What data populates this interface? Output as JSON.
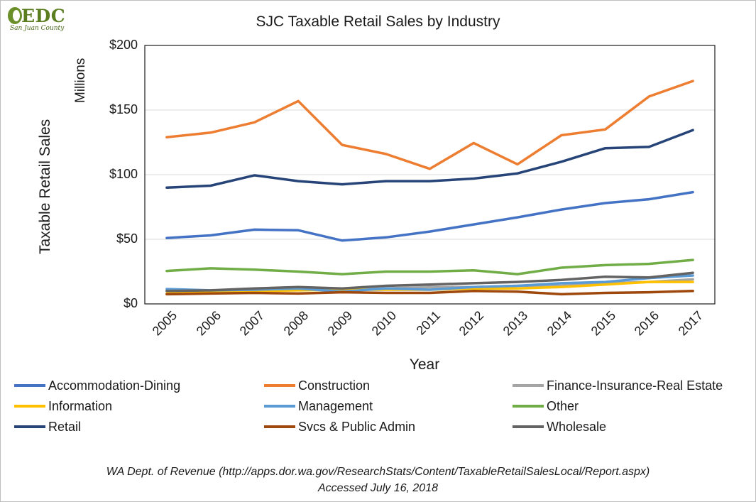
{
  "logo": {
    "text": "EDC",
    "subtitle": "San Juan County"
  },
  "chart_data": {
    "type": "line",
    "title": "SJC Taxable Retail Sales by Industry",
    "units_label": "Millions",
    "ylabel": "Taxable Retail Sales",
    "xlabel": "Year",
    "x": [
      "2005",
      "2006",
      "2007",
      "2008",
      "2009",
      "2010",
      "2011",
      "2012",
      "2013",
      "2014",
      "2015",
      "2016",
      "2017"
    ],
    "ylim": [
      0,
      200
    ],
    "y_ticks": [
      {
        "value": 0,
        "label": "$0"
      },
      {
        "value": 50,
        "label": "$50"
      },
      {
        "value": 100,
        "label": "$100"
      },
      {
        "value": 150,
        "label": "$150"
      },
      {
        "value": 200,
        "label": "$200"
      }
    ],
    "grid": true,
    "legend_position": "bottom",
    "series": [
      {
        "name": "Accommodation-Dining",
        "color": "#4472c4",
        "values": [
          51,
          53,
          57.5,
          57,
          49,
          51.5,
          56,
          61.5,
          67,
          73,
          78,
          81,
          86.5
        ]
      },
      {
        "name": "Construction",
        "color": "#ed7d31",
        "values": [
          129,
          132.5,
          140.5,
          157,
          123,
          116,
          104.5,
          124.5,
          108,
          130.5,
          135,
          160.5,
          172.5
        ]
      },
      {
        "name": "Finance-Insurance-Real Estate",
        "color": "#a5a5a5",
        "values": [
          10,
          10,
          11,
          12,
          11,
          12,
          13,
          13,
          14,
          14,
          16,
          17,
          19
        ]
      },
      {
        "name": "Information",
        "color": "#ffc000",
        "values": [
          8,
          9,
          10,
          10.5,
          11,
          11,
          11,
          12,
          12,
          13,
          15,
          17,
          17
        ]
      },
      {
        "name": "Management",
        "color": "#5b9bd5",
        "values": [
          11.5,
          10.5,
          11,
          12,
          9.5,
          12,
          11,
          13,
          14,
          16,
          17,
          20,
          22
        ]
      },
      {
        "name": "Other",
        "color": "#70ad47",
        "values": [
          25.5,
          27.5,
          26.5,
          25,
          23,
          25,
          25,
          26,
          23,
          28,
          30,
          31,
          34
        ]
      },
      {
        "name": "Retail",
        "color": "#264478",
        "values": [
          90,
          91.5,
          99.5,
          95,
          92.5,
          95,
          95,
          97,
          101,
          110,
          120.5,
          121.5,
          134.5
        ]
      },
      {
        "name": "Svcs & Public Admin",
        "color": "#9e480e",
        "values": [
          7.5,
          8,
          8.5,
          8,
          9,
          8.5,
          8.5,
          10,
          9.5,
          7.5,
          8.5,
          9,
          10
        ]
      },
      {
        "name": "Wholesale",
        "color": "#636363",
        "values": [
          10,
          10.5,
          12,
          13,
          12,
          14,
          15,
          16,
          17,
          18.5,
          21,
          20.5,
          24
        ]
      }
    ]
  },
  "source": {
    "line1": "WA Dept. of Revenue (http://apps.dor.wa.gov/ResearchStats/Content/TaxableRetailSalesLocal/Report.aspx)",
    "line2": "Accessed July 16, 2018"
  }
}
